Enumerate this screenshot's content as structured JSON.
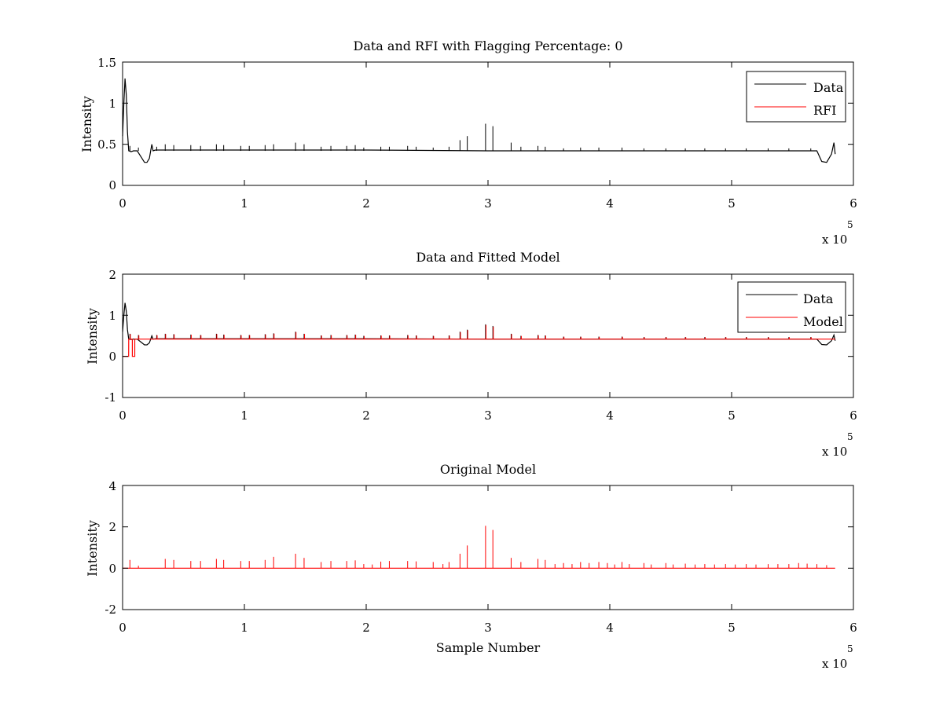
{
  "chart_data": [
    {
      "type": "line",
      "title": "Data and RFI with Flagging Percentage: 0",
      "xlabel": "",
      "ylabel": "Intensity",
      "xlim": [
        0,
        600000
      ],
      "ylim": [
        0,
        1.5
      ],
      "xticks": [
        0,
        1,
        2,
        3,
        4,
        5,
        6
      ],
      "yticks": [
        "0",
        "0.5",
        "1",
        "1.5"
      ],
      "x_multiplier": "x 10",
      "x_multiplier_exp": "5",
      "legend_position": "top-right",
      "legend": [
        {
          "label": "Data",
          "color": "#000000"
        },
        {
          "label": "RFI",
          "color": "#ff0000"
        }
      ],
      "series": [
        {
          "name": "Data",
          "color": "#000000",
          "baseline": 0.42,
          "x": [
            0,
            1000,
            2000,
            3000,
            4000,
            5000,
            7000,
            9000,
            12000,
            15000,
            18000,
            20000,
            22000,
            24000,
            25000,
            27000,
            30000,
            60000,
            120000,
            200000,
            300000,
            400000,
            500000,
            560000,
            570000,
            574000,
            578000,
            582000,
            584000,
            585000
          ],
          "y": [
            0.6,
            1.0,
            1.3,
            1.1,
            0.65,
            0.42,
            0.41,
            0.42,
            0.42,
            0.35,
            0.28,
            0.28,
            0.33,
            0.5,
            0.42,
            0.43,
            0.43,
            0.43,
            0.43,
            0.43,
            0.42,
            0.42,
            0.42,
            0.42,
            0.42,
            0.29,
            0.28,
            0.38,
            0.52,
            0.38
          ]
        },
        {
          "name": "RFI",
          "color": "#ff0000",
          "points": []
        }
      ]
    },
    {
      "type": "line",
      "title": "Data and Fitted Model",
      "xlabel": "",
      "ylabel": "Intensity",
      "xlim": [
        0,
        600000
      ],
      "ylim": [
        -1,
        2
      ],
      "xticks": [
        0,
        1,
        2,
        3,
        4,
        5,
        6
      ],
      "yticks": [
        "-1",
        "0",
        "1",
        "2"
      ],
      "x_multiplier": "x 10",
      "x_multiplier_exp": "5",
      "legend_position": "top-right",
      "legend": [
        {
          "label": "Data",
          "color": "#000000"
        },
        {
          "label": "Model",
          "color": "#ff0000"
        }
      ],
      "series": [
        {
          "name": "Data",
          "color": "#000000",
          "baseline": 0.42,
          "x": [
            0,
            1000,
            2000,
            3000,
            4000,
            5000,
            7000,
            9000,
            12000,
            15000,
            18000,
            20000,
            22000,
            24000,
            25000,
            27000,
            30000,
            60000,
            120000,
            200000,
            300000,
            400000,
            500000,
            560000,
            570000,
            574000,
            578000,
            582000,
            584000,
            585000
          ],
          "y": [
            0.6,
            1.0,
            1.3,
            1.1,
            0.65,
            0.42,
            0.41,
            0.42,
            0.42,
            0.35,
            0.28,
            0.28,
            0.33,
            0.5,
            0.42,
            0.43,
            0.43,
            0.43,
            0.43,
            0.43,
            0.42,
            0.42,
            0.42,
            0.42,
            0.42,
            0.29,
            0.28,
            0.38,
            0.52,
            0.38
          ]
        },
        {
          "name": "Model",
          "color": "#ff0000",
          "baseline": 0.42,
          "x": [
            0,
            4999,
            5000,
            7999,
            8000,
            9999,
            10000,
            585000
          ],
          "y": [
            0,
            0,
            0.42,
            0.42,
            0,
            0,
            0.42,
            0.42
          ]
        }
      ]
    },
    {
      "type": "line",
      "title": "Original Model",
      "xlabel": "Sample Number",
      "ylabel": "Intensity",
      "xlim": [
        0,
        600000
      ],
      "ylim": [
        -2,
        4
      ],
      "xticks": [
        0,
        1,
        2,
        3,
        4,
        5,
        6
      ],
      "yticks": [
        "-2",
        "0",
        "2",
        "4"
      ],
      "x_multiplier": "x 10",
      "x_multiplier_exp": "5",
      "series": [
        {
          "name": "Original Model",
          "color": "#ff0000",
          "baseline": 0
        }
      ]
    }
  ],
  "spikes": {
    "sub1": [
      [
        6000,
        0.48
      ],
      [
        13000,
        0.46
      ],
      [
        28000,
        0.47
      ],
      [
        35000,
        0.5
      ],
      [
        42000,
        0.49
      ],
      [
        56000,
        0.49
      ],
      [
        64000,
        0.48
      ],
      [
        77000,
        0.5
      ],
      [
        83000,
        0.49
      ],
      [
        97000,
        0.48
      ],
      [
        104000,
        0.48
      ],
      [
        117000,
        0.49
      ],
      [
        124000,
        0.5
      ],
      [
        142000,
        0.52
      ],
      [
        149000,
        0.5
      ],
      [
        163000,
        0.47
      ],
      [
        171000,
        0.48
      ],
      [
        184000,
        0.48
      ],
      [
        191000,
        0.49
      ],
      [
        198000,
        0.46
      ],
      [
        212000,
        0.47
      ],
      [
        219000,
        0.47
      ],
      [
        234000,
        0.48
      ],
      [
        241000,
        0.47
      ],
      [
        255000,
        0.46
      ],
      [
        268000,
        0.47
      ],
      [
        277000,
        0.55
      ],
      [
        283000,
        0.6
      ],
      [
        298000,
        0.75
      ],
      [
        304000,
        0.72
      ],
      [
        319000,
        0.52
      ],
      [
        327000,
        0.47
      ],
      [
        341000,
        0.48
      ],
      [
        347000,
        0.47
      ],
      [
        362000,
        0.45
      ],
      [
        376000,
        0.46
      ],
      [
        391000,
        0.46
      ],
      [
        410000,
        0.46
      ],
      [
        428000,
        0.45
      ],
      [
        446000,
        0.45
      ],
      [
        462000,
        0.45
      ],
      [
        478000,
        0.45
      ],
      [
        495000,
        0.45
      ],
      [
        512000,
        0.45
      ],
      [
        530000,
        0.45
      ],
      [
        547000,
        0.45
      ],
      [
        565000,
        0.45
      ]
    ],
    "sub2": [
      [
        6000,
        0.55
      ],
      [
        13000,
        0.52
      ],
      [
        28000,
        0.52
      ],
      [
        35000,
        0.55
      ],
      [
        42000,
        0.54
      ],
      [
        56000,
        0.53
      ],
      [
        64000,
        0.52
      ],
      [
        77000,
        0.55
      ],
      [
        83000,
        0.53
      ],
      [
        97000,
        0.52
      ],
      [
        104000,
        0.52
      ],
      [
        117000,
        0.54
      ],
      [
        124000,
        0.56
      ],
      [
        142000,
        0.6
      ],
      [
        149000,
        0.55
      ],
      [
        163000,
        0.51
      ],
      [
        171000,
        0.52
      ],
      [
        184000,
        0.52
      ],
      [
        191000,
        0.53
      ],
      [
        198000,
        0.5
      ],
      [
        212000,
        0.51
      ],
      [
        219000,
        0.51
      ],
      [
        234000,
        0.52
      ],
      [
        241000,
        0.51
      ],
      [
        255000,
        0.5
      ],
      [
        268000,
        0.51
      ],
      [
        277000,
        0.6
      ],
      [
        283000,
        0.65
      ],
      [
        298000,
        0.78
      ],
      [
        304000,
        0.74
      ],
      [
        319000,
        0.55
      ],
      [
        327000,
        0.5
      ],
      [
        341000,
        0.52
      ],
      [
        347000,
        0.51
      ],
      [
        362000,
        0.48
      ],
      [
        376000,
        0.48
      ],
      [
        391000,
        0.48
      ],
      [
        410000,
        0.48
      ],
      [
        428000,
        0.47
      ],
      [
        446000,
        0.47
      ],
      [
        462000,
        0.47
      ],
      [
        478000,
        0.47
      ],
      [
        495000,
        0.47
      ],
      [
        512000,
        0.47
      ],
      [
        530000,
        0.47
      ],
      [
        547000,
        0.47
      ],
      [
        565000,
        0.47
      ]
    ],
    "sub3": [
      [
        6000,
        0.4
      ],
      [
        13000,
        0.12
      ],
      [
        35000,
        0.45
      ],
      [
        42000,
        0.4
      ],
      [
        56000,
        0.35
      ],
      [
        64000,
        0.35
      ],
      [
        77000,
        0.45
      ],
      [
        83000,
        0.4
      ],
      [
        97000,
        0.35
      ],
      [
        104000,
        0.35
      ],
      [
        117000,
        0.4
      ],
      [
        124000,
        0.55
      ],
      [
        142000,
        0.7
      ],
      [
        149000,
        0.5
      ],
      [
        163000,
        0.3
      ],
      [
        171000,
        0.35
      ],
      [
        184000,
        0.35
      ],
      [
        191000,
        0.38
      ],
      [
        198000,
        0.2
      ],
      [
        205000,
        0.18
      ],
      [
        212000,
        0.32
      ],
      [
        219000,
        0.35
      ],
      [
        234000,
        0.35
      ],
      [
        241000,
        0.33
      ],
      [
        255000,
        0.3
      ],
      [
        263000,
        0.2
      ],
      [
        268000,
        0.3
      ],
      [
        277000,
        0.7
      ],
      [
        283000,
        1.1
      ],
      [
        298000,
        2.05
      ],
      [
        304000,
        1.85
      ],
      [
        319000,
        0.5
      ],
      [
        327000,
        0.3
      ],
      [
        341000,
        0.45
      ],
      [
        347000,
        0.4
      ],
      [
        355000,
        0.2
      ],
      [
        362000,
        0.25
      ],
      [
        369000,
        0.2
      ],
      [
        376000,
        0.3
      ],
      [
        383000,
        0.25
      ],
      [
        391000,
        0.3
      ],
      [
        398000,
        0.25
      ],
      [
        404000,
        0.18
      ],
      [
        410000,
        0.3
      ],
      [
        416000,
        0.2
      ],
      [
        428000,
        0.25
      ],
      [
        434000,
        0.18
      ],
      [
        446000,
        0.25
      ],
      [
        452000,
        0.18
      ],
      [
        462000,
        0.22
      ],
      [
        470000,
        0.18
      ],
      [
        478000,
        0.2
      ],
      [
        486000,
        0.18
      ],
      [
        495000,
        0.2
      ],
      [
        503000,
        0.18
      ],
      [
        512000,
        0.2
      ],
      [
        520000,
        0.18
      ],
      [
        530000,
        0.2
      ],
      [
        538000,
        0.2
      ],
      [
        547000,
        0.2
      ],
      [
        555000,
        0.25
      ],
      [
        562000,
        0.22
      ],
      [
        570000,
        0.2
      ],
      [
        578000,
        0.15
      ]
    ]
  }
}
